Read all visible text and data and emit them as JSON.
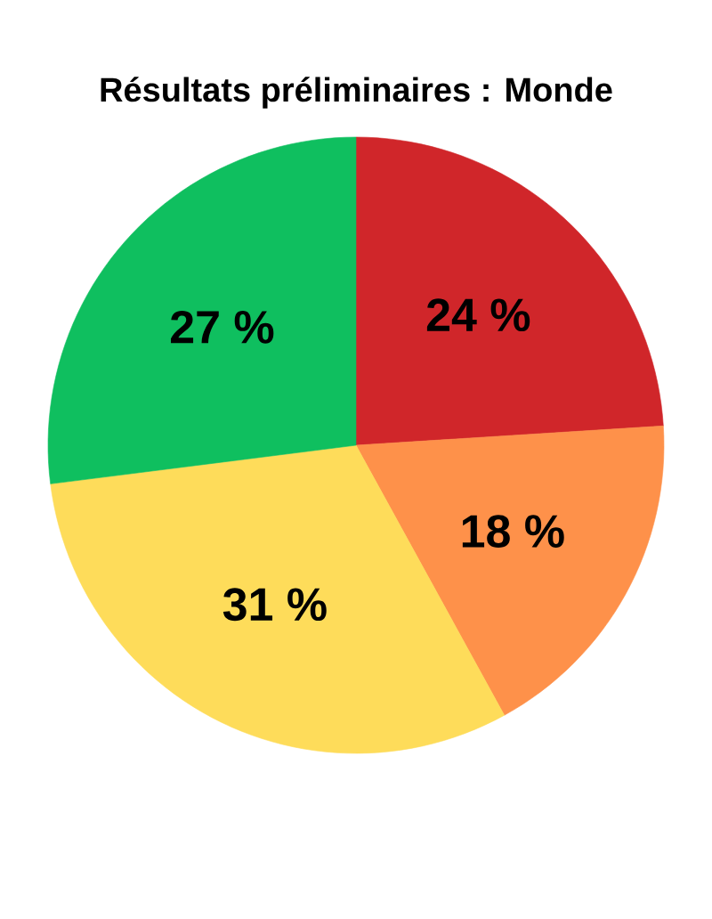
{
  "chart_data": {
    "type": "pie",
    "title": "Résultats préliminaires : Monde",
    "categories": [
      null,
      null,
      null,
      null
    ],
    "values": [
      24,
      18,
      31,
      27
    ],
    "colors": [
      "#d0262a",
      "#fe914a",
      "#fedc5a",
      "#0fbf5f"
    ],
    "value_labels": [
      "24 %",
      "18 %",
      "31 %",
      "27 %"
    ]
  }
}
